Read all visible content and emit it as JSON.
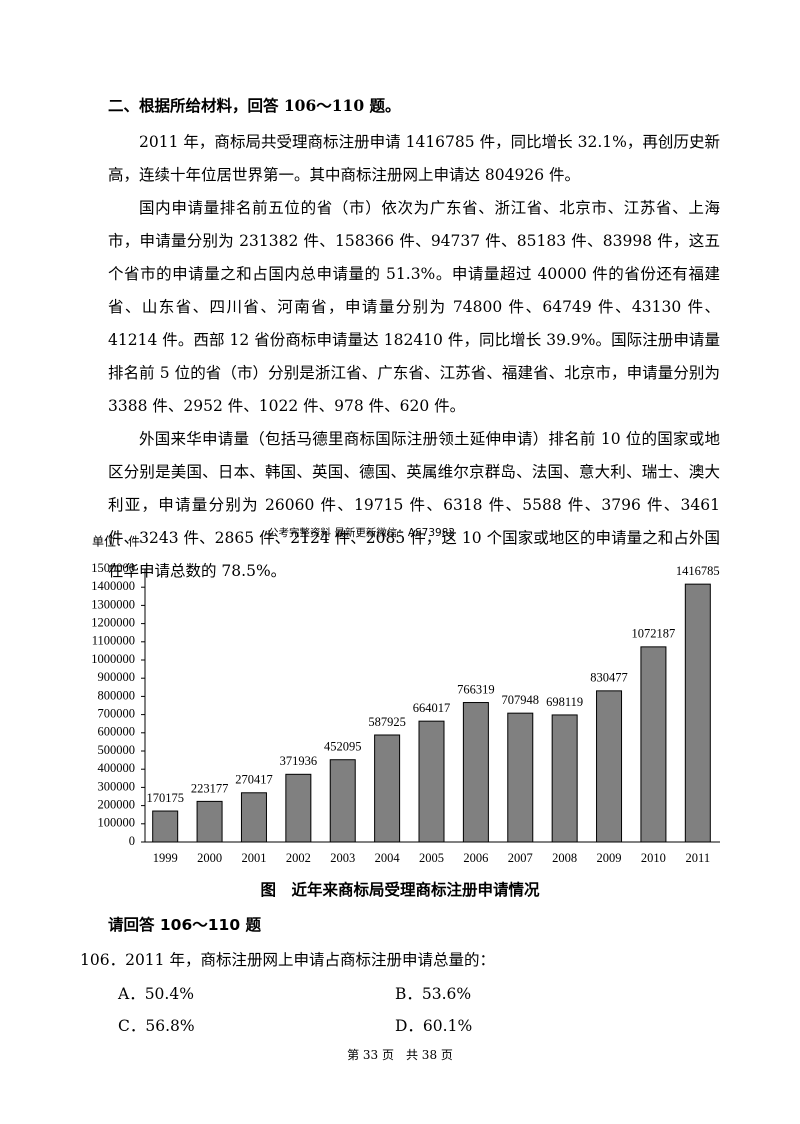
{
  "heading": "二、根据所给材料，回答 106～110 题。",
  "paragraphs": [
    "2011 年，商标局共受理商标注册申请 1416785 件，同比增长 32.1%，再创历史新高，连续十年位居世界第一。其中商标注册网上申请达 804926 件。",
    "国内申请量排名前五位的省（市）依次为广东省、浙江省、北京市、江苏省、上海市，申请量分别为 231382 件、158366 件、94737 件、85183 件、83998 件，这五个省市的申请量之和占国内总申请量的 51.3%。申请量超过 40000 件的省份还有福建省、山东省、四川省、河南省，申请量分别为 74800 件、64749 件、43130 件、41214 件。西部 12 省份商标申请量达 182410 件，同比增长 39.9%。国际注册申请量排名前 5 位的省（市）分别是浙江省、广东省、江苏省、福建省、北京市，申请量分别为 3388 件、2952 件、1022 件、978 件、620 件。",
    "外国来华申请量（包括马德里商标国际注册领土延伸申请）排名前 10 位的国家或地区分别是美国、日本、韩国、英国、德国、英属维尔京群岛、法国、意大利、瑞士、澳大利亚，申请量分别为 26060 件、19715 件、6318 件、5588 件、3796 件、3461 件、3243 件、2865 件、2124 件、2085 件，这 10 个国家或地区的申请量之和占外国在华申请总数的 78.5%。"
  ],
  "watermark": "公考完整资料 最新更新微信：AS73982",
  "chart_data": {
    "type": "bar",
    "title": "图　近年来商标局受理商标注册申请情况",
    "y_label": "单位：件",
    "categories": [
      "1999",
      "2000",
      "2001",
      "2002",
      "2003",
      "2004",
      "2005",
      "2006",
      "2007",
      "2008",
      "2009",
      "2010",
      "2011"
    ],
    "values": [
      170175,
      223177,
      270417,
      371936,
      452095,
      587925,
      664017,
      766319,
      707948,
      698119,
      830477,
      1072187,
      1416785
    ],
    "color": "#808080",
    "ylim": [
      0,
      1500000
    ],
    "yticks": [
      0,
      100000,
      200000,
      300000,
      400000,
      500000,
      600000,
      700000,
      800000,
      900000,
      1000000,
      1100000,
      1200000,
      1300000,
      1400000,
      1500000
    ],
    "grid": false
  },
  "prompt": "请回答 106～110 题",
  "question": {
    "text": "106．2011 年，商标注册网上申请占商标注册申请总量的：",
    "options": [
      "A．50.4%",
      "B．53.6%",
      "C．56.8%",
      "D．60.1%"
    ]
  },
  "footer": "第 33 页　共 38 页"
}
